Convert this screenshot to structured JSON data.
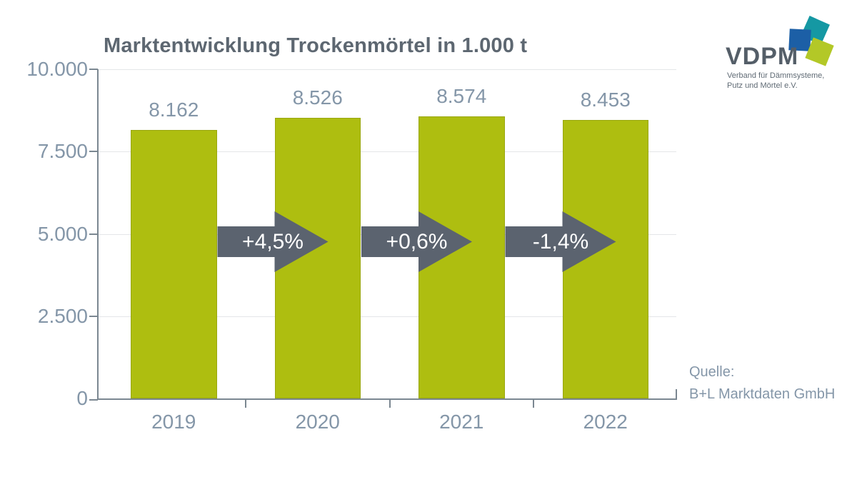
{
  "title": "Marktentwicklung Trockenmörtel in 1.000 t",
  "logo": {
    "name": "VDPM",
    "line1": "Verband für Dämmsysteme,",
    "line2": "Putz und Mörtel e.V."
  },
  "source": {
    "label": "Quelle:",
    "name": "B+L Marktdaten GmbH"
  },
  "colors": {
    "bar_color": "#aebe10",
    "bar_border": "#99a70f",
    "arrow_color": "#5b636f",
    "label_color": "#8496a8",
    "title_color": "#5d6771",
    "axis_color": "#7b8791",
    "grid_color": "#e4e6e8",
    "logo_blue": "#1c5fa6",
    "logo_teal": "#1598a3",
    "logo_lime": "#b3c827",
    "logo_text": "#545e68",
    "logo_sub": "#606b75"
  },
  "chart_data": {
    "type": "bar",
    "title": "Marktentwicklung Trockenmörtel in 1.000 t",
    "categories": [
      "2019",
      "2020",
      "2021",
      "2022"
    ],
    "values": [
      8162,
      8526,
      8574,
      8453
    ],
    "value_labels": [
      "8.162",
      "8.526",
      "8.574",
      "8.453"
    ],
    "change_labels": [
      "+4,5%",
      "+0,6%",
      "-1,4%"
    ],
    "change_values_pct": [
      4.5,
      0.6,
      -1.4
    ],
    "xlabel": "",
    "ylabel": "",
    "unit": "1.000 t",
    "ylim": [
      0,
      10000
    ],
    "yticks": [
      0,
      2500,
      5000,
      7500,
      10000
    ],
    "ytick_labels": [
      "0",
      "2.500",
      "5.000",
      "7.500",
      "10.000"
    ],
    "grid": true,
    "legend": false
  }
}
